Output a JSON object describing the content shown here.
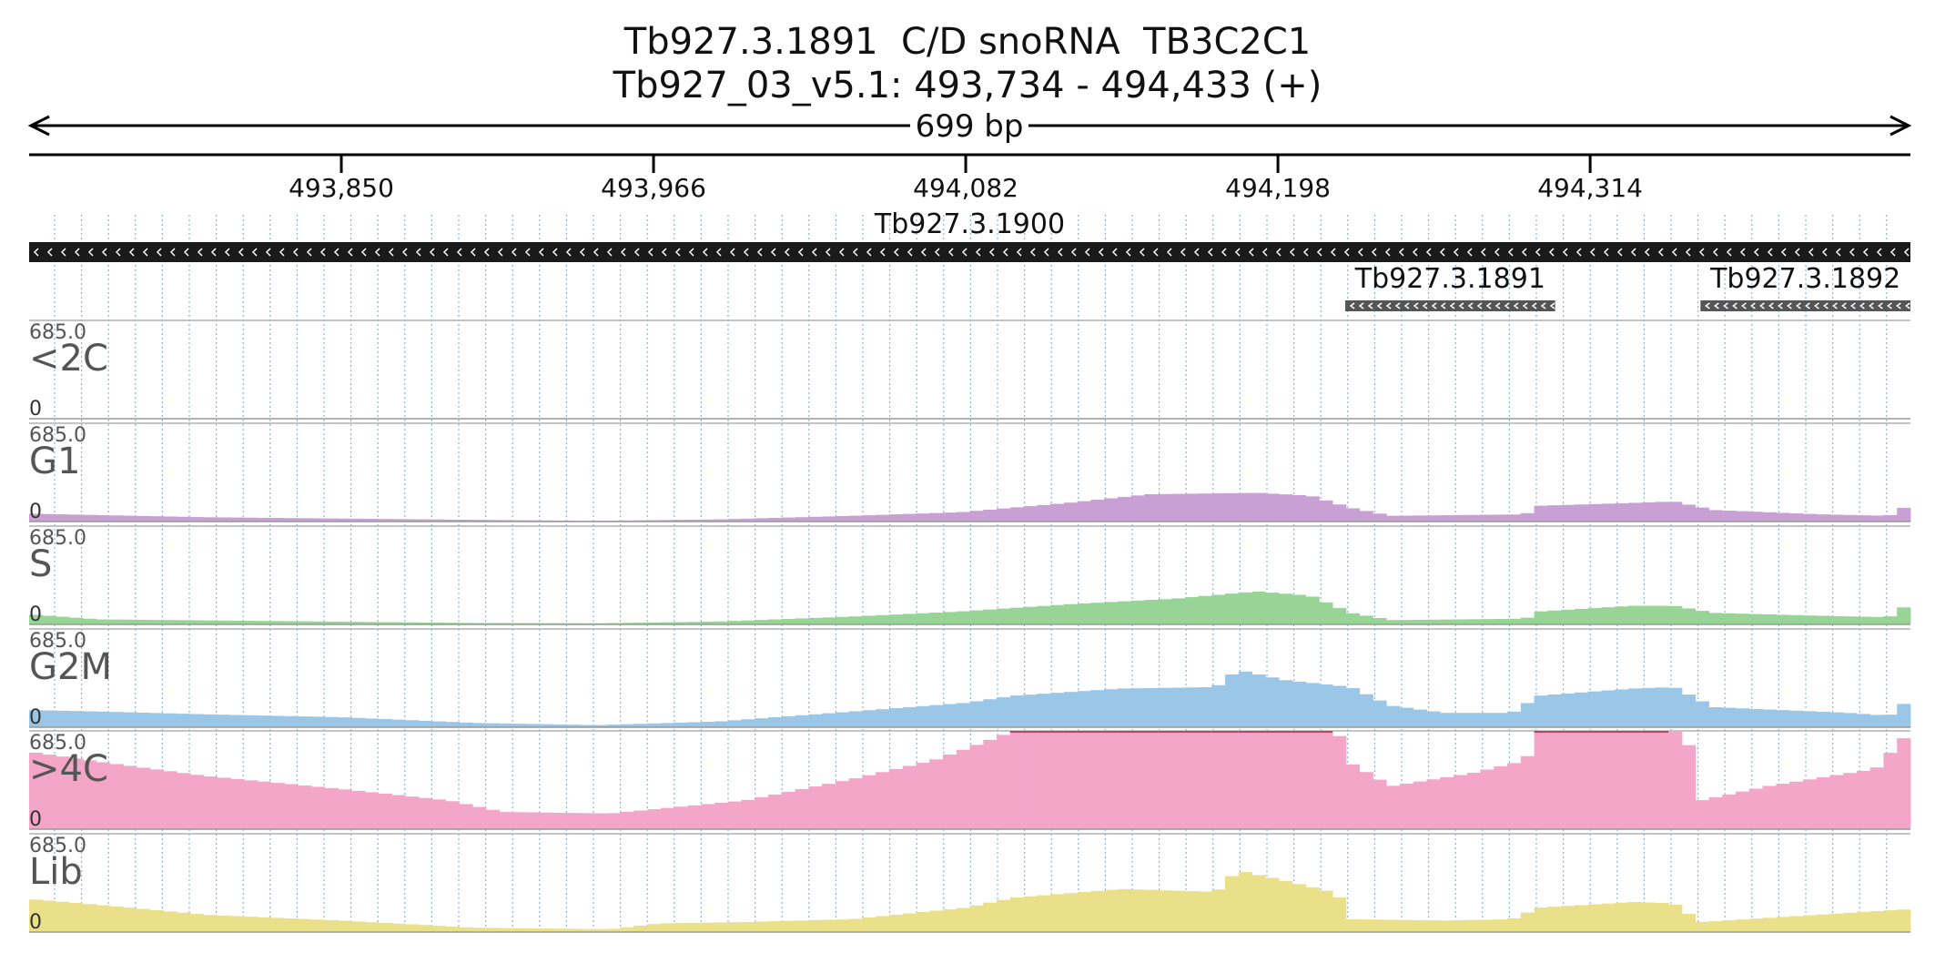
{
  "header": {
    "title": "Tb927.3.1891  C/D snoRNA  TB3C2C1",
    "region": "Tb927_03_v5.1: 493,734 - 494,433 (+)",
    "span_label": "699 bp"
  },
  "chart_data": {
    "type": "bar",
    "x_range": [
      493734,
      494433
    ],
    "ticks": [
      {
        "pos": 493850,
        "label": "493,850"
      },
      {
        "pos": 493966,
        "label": "493,966"
      },
      {
        "pos": 494082,
        "label": "494,082"
      },
      {
        "pos": 494198,
        "label": "494,198"
      },
      {
        "pos": 494314,
        "label": "494,314"
      }
    ],
    "genes": [
      {
        "name": "Tb927.3.1900",
        "start": 493734,
        "end": 494433,
        "strand": "-",
        "color": "#1a1a1a"
      },
      {
        "name": "Tb927.3.1891",
        "start": 494223,
        "end": 494301,
        "strand": "-",
        "color": "#555555"
      },
      {
        "name": "Tb927.3.1892",
        "start": 494355,
        "end": 494433,
        "strand": "-",
        "color": "#555555"
      }
    ],
    "tracks": [
      {
        "name": "<2C",
        "max_label": "685.0",
        "min_label": "0",
        "max": 685,
        "color": "#c8a0d4",
        "knots": [
          [
            493734,
            0
          ],
          [
            494433,
            0
          ]
        ]
      },
      {
        "name": "G1",
        "max_label": "685.0",
        "min_label": "0",
        "max": 685,
        "color": "#c9a0d3",
        "knots": [
          [
            493734,
            55
          ],
          [
            493760,
            45
          ],
          [
            493800,
            30
          ],
          [
            493900,
            12
          ],
          [
            493945,
            5
          ],
          [
            493990,
            15
          ],
          [
            494040,
            40
          ],
          [
            494080,
            65
          ],
          [
            494120,
            130
          ],
          [
            494150,
            190
          ],
          [
            494190,
            200
          ],
          [
            494210,
            180
          ],
          [
            494225,
            95
          ],
          [
            494240,
            40
          ],
          [
            494290,
            50
          ],
          [
            494295,
            110
          ],
          [
            494330,
            130
          ],
          [
            494345,
            140
          ],
          [
            494360,
            80
          ],
          [
            494400,
            50
          ],
          [
            494425,
            40
          ],
          [
            494433,
            120
          ]
        ]
      },
      {
        "name": "S",
        "max_label": "685.0",
        "min_label": "0",
        "max": 685,
        "color": "#98d496",
        "knots": [
          [
            493734,
            70
          ],
          [
            493760,
            35
          ],
          [
            493900,
            10
          ],
          [
            493945,
            8
          ],
          [
            493990,
            20
          ],
          [
            494040,
            55
          ],
          [
            494080,
            90
          ],
          [
            494120,
            140
          ],
          [
            494160,
            180
          ],
          [
            494190,
            230
          ],
          [
            494210,
            200
          ],
          [
            494225,
            80
          ],
          [
            494240,
            30
          ],
          [
            494290,
            40
          ],
          [
            494295,
            90
          ],
          [
            494330,
            130
          ],
          [
            494345,
            130
          ],
          [
            494360,
            80
          ],
          [
            494400,
            60
          ],
          [
            494425,
            50
          ],
          [
            494433,
            150
          ]
        ]
      },
      {
        "name": "G2M",
        "max_label": "685.0",
        "min_label": "0",
        "max": 685,
        "color": "#9ac6e8",
        "knots": [
          [
            493734,
            120
          ],
          [
            493760,
            110
          ],
          [
            493800,
            90
          ],
          [
            493850,
            70
          ],
          [
            493900,
            30
          ],
          [
            493945,
            15
          ],
          [
            493990,
            40
          ],
          [
            494040,
            110
          ],
          [
            494082,
            170
          ],
          [
            494100,
            220
          ],
          [
            494140,
            270
          ],
          [
            494175,
            280
          ],
          [
            494183,
            400
          ],
          [
            494200,
            330
          ],
          [
            494225,
            280
          ],
          [
            494240,
            150
          ],
          [
            494260,
            100
          ],
          [
            494285,
            100
          ],
          [
            494295,
            220
          ],
          [
            494330,
            270
          ],
          [
            494345,
            280
          ],
          [
            494360,
            140
          ],
          [
            494410,
            100
          ],
          [
            494425,
            80
          ],
          [
            494433,
            200
          ]
        ]
      },
      {
        "name": ">4C",
        "max_label": "685.0",
        "min_label": "0",
        "max": 685,
        "color": "#f4a6c9",
        "knots": [
          [
            493734,
            540
          ],
          [
            493760,
            470
          ],
          [
            493800,
            370
          ],
          [
            493850,
            280
          ],
          [
            493890,
            200
          ],
          [
            493910,
            120
          ],
          [
            493950,
            110
          ],
          [
            494000,
            200
          ],
          [
            494040,
            350
          ],
          [
            494070,
            480
          ],
          [
            494082,
            560
          ],
          [
            494100,
            685
          ],
          [
            494220,
            685
          ],
          [
            494225,
            460
          ],
          [
            494240,
            300
          ],
          [
            494270,
            390
          ],
          [
            494290,
            480
          ],
          [
            494295,
            685
          ],
          [
            494345,
            685
          ],
          [
            494350,
            640
          ],
          [
            494355,
            200
          ],
          [
            494380,
            300
          ],
          [
            494420,
            420
          ],
          [
            494433,
            685
          ]
        ]
      },
      {
        "name": "Lib",
        "max_label": "685.0",
        "min_label": "0",
        "max": 685,
        "color": "#eae08a",
        "knots": [
          [
            493734,
            230
          ],
          [
            493760,
            190
          ],
          [
            493800,
            120
          ],
          [
            493850,
            80
          ],
          [
            493900,
            30
          ],
          [
            493950,
            20
          ],
          [
            493968,
            60
          ],
          [
            494000,
            70
          ],
          [
            494040,
            90
          ],
          [
            494082,
            170
          ],
          [
            494100,
            240
          ],
          [
            494140,
            300
          ],
          [
            494175,
            280
          ],
          [
            494183,
            430
          ],
          [
            494200,
            360
          ],
          [
            494220,
            270
          ],
          [
            494225,
            90
          ],
          [
            494260,
            80
          ],
          [
            494285,
            90
          ],
          [
            494295,
            170
          ],
          [
            494330,
            210
          ],
          [
            494345,
            200
          ],
          [
            494355,
            70
          ],
          [
            494433,
            160
          ]
        ]
      }
    ]
  }
}
